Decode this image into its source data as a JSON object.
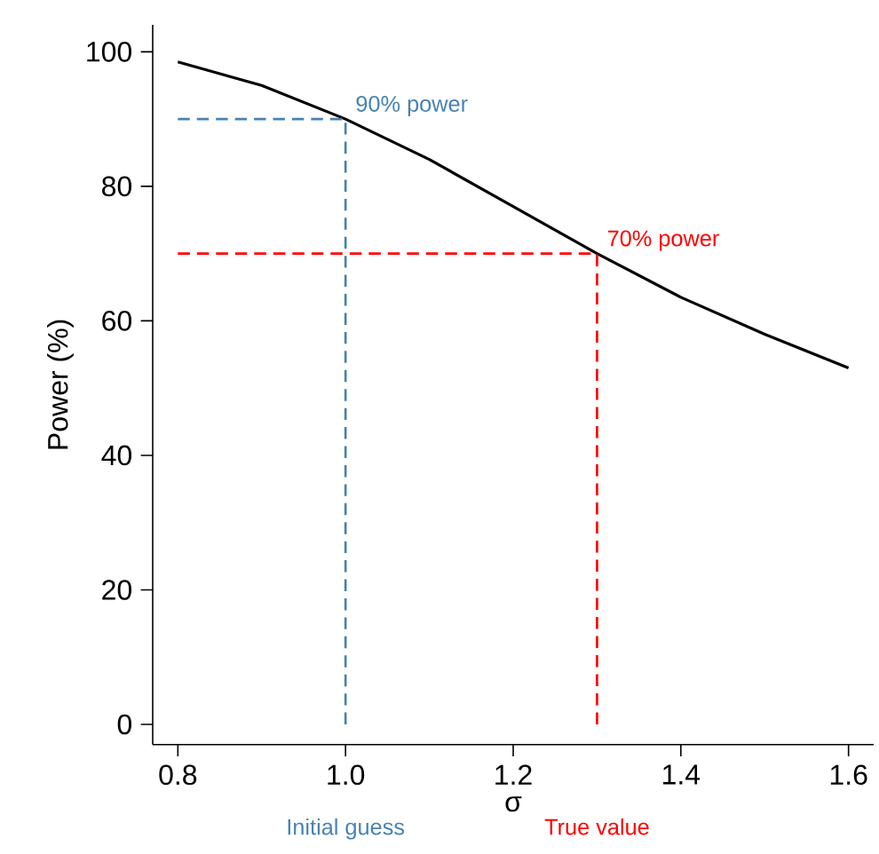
{
  "chart_data": {
    "type": "line",
    "xlabel": "σ",
    "ylabel": "Power (%)",
    "x": [
      0.8,
      0.9,
      1.0,
      1.1,
      1.2,
      1.3,
      1.4,
      1.5,
      1.6
    ],
    "series": [
      {
        "color": "#000000",
        "values": [
          98.5,
          95,
          90,
          84,
          77,
          70,
          63.5,
          58,
          53
        ],
        "line_style": "solid"
      },
      {
        "color": "#4682b4",
        "x": [
          0.8,
          1.0,
          1.0
        ],
        "values": [
          90,
          90,
          0
        ],
        "line_style": "dashed"
      },
      {
        "color": "#ff0000",
        "x": [
          0.8,
          1.3,
          1.3
        ],
        "values": [
          70,
          70,
          0
        ],
        "line_style": "dashed"
      }
    ],
    "annotations": [
      {
        "text": "90% power",
        "x": 1.0,
        "y": 90
      },
      {
        "text": "70% power",
        "x": 1.3,
        "y": 70
      },
      "Initial guess",
      "True value"
    ],
    "xlim": [
      0.77,
      1.63
    ],
    "ylim": [
      -3,
      104
    ],
    "xticks": [
      {
        "value": 0.8,
        "label": "0.8"
      },
      {
        "value": 1.0,
        "label": "1.0"
      },
      {
        "value": 1.2,
        "label": "1.2"
      },
      {
        "value": 1.4,
        "label": "1.4"
      },
      {
        "value": 1.6,
        "label": "1.6"
      }
    ],
    "yticks": [
      0,
      20,
      40,
      60,
      80,
      100
    ],
    "marker": "none"
  }
}
